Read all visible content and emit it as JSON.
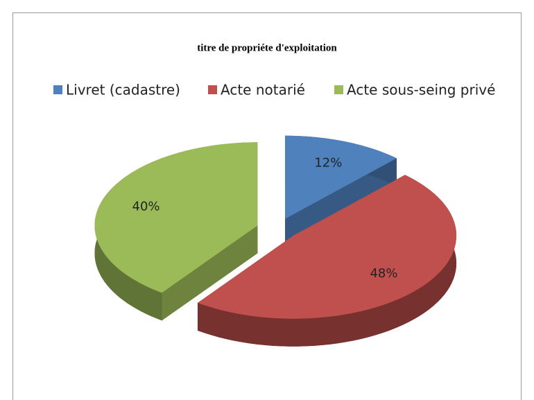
{
  "chart_data": {
    "type": "pie",
    "title": "titre de propriéte d'exploitation",
    "categories": [
      "Livret (cadastre)",
      "Acte notarié",
      "Acte sous-seing privé"
    ],
    "values": [
      12,
      48,
      40
    ],
    "value_labels": [
      "12%",
      "48%",
      "40%"
    ],
    "colors": [
      "#4f81bd",
      "#c0504d",
      "#9bbb59"
    ],
    "legend": "top"
  }
}
